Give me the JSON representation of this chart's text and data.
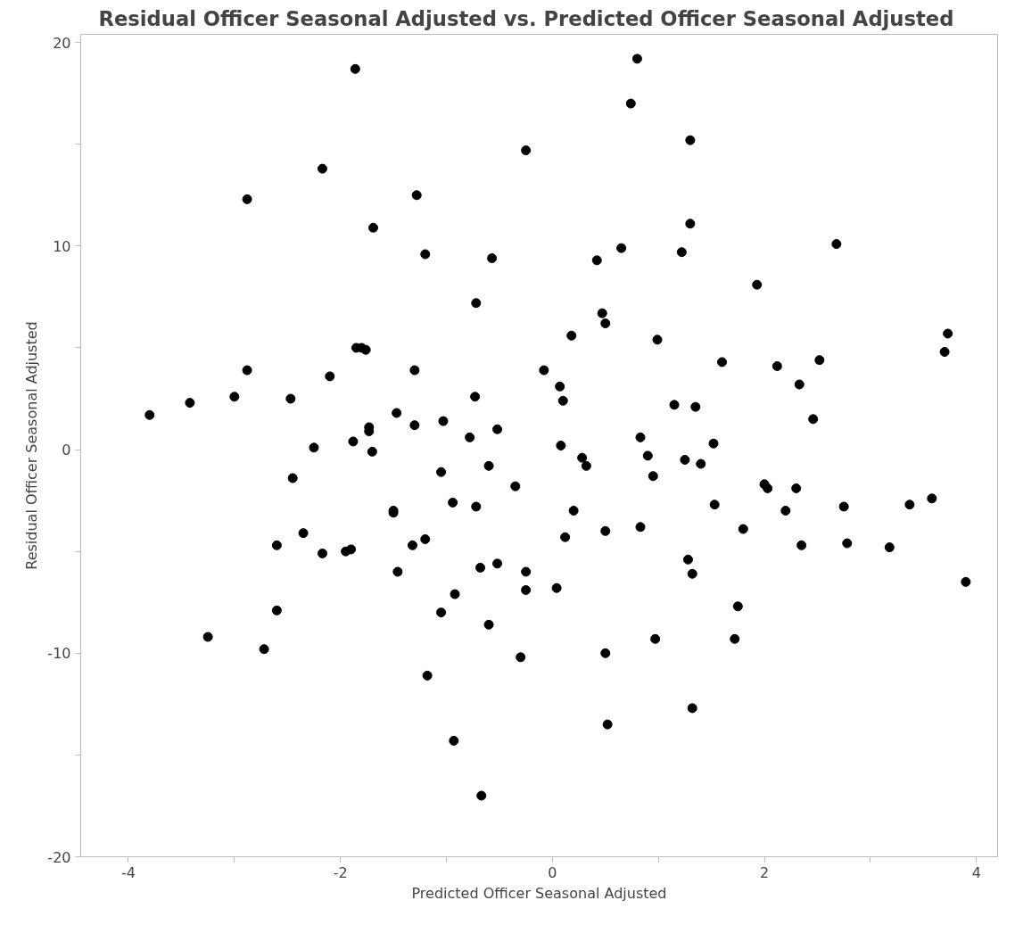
{
  "chart_data": {
    "type": "scatter",
    "title": "Residual Officer Seasonal Adjusted vs. Predicted Officer Seasonal Adjusted",
    "xlabel": "Predicted Officer Seasonal Adjusted",
    "ylabel": "Residual Officer Seasonal Adjusted",
    "xlim": [
      -4.45,
      4.2
    ],
    "ylim": [
      -20,
      20.4
    ],
    "xticks": [
      -4,
      {
        "value": -3,
        "label": null
      },
      -2,
      {
        "value": -1,
        "label": null
      },
      0,
      {
        "value": 1,
        "label": null
      },
      2,
      {
        "value": 3,
        "label": null
      },
      4
    ],
    "yticks": [
      -20,
      {
        "value": -15,
        "label": null
      },
      -10,
      {
        "value": -5,
        "label": null
      },
      0,
      {
        "value": 5,
        "label": null
      },
      10,
      {
        "value": 15,
        "label": null
      },
      20
    ],
    "grid": false,
    "marker": "circle",
    "series": [
      {
        "color": "#000000",
        "x": [
          -3.8,
          -3.42,
          -3.0,
          -2.88,
          -2.88,
          -2.47,
          -2.25,
          -2.45,
          -2.6,
          -2.6,
          -2.35,
          -2.17,
          -3.25,
          -2.72,
          -2.17,
          -2.1,
          -1.95,
          -1.88,
          -1.9,
          -1.86,
          -1.85,
          -1.8,
          -1.76,
          -1.73,
          -1.73,
          -1.7,
          -1.69,
          -1.47,
          -1.5,
          -1.5,
          -1.46,
          -1.3,
          -1.3,
          -1.32,
          -1.28,
          -1.2,
          -1.2,
          -1.18,
          -1.05,
          -1.03,
          -1.05,
          -0.94,
          -0.92,
          -0.93,
          -0.78,
          -0.73,
          -0.72,
          -0.72,
          -0.68,
          -0.67,
          -0.6,
          -0.6,
          -0.57,
          -0.52,
          -0.52,
          -0.35,
          -0.3,
          -0.25,
          -0.25,
          -0.25,
          -0.08,
          0.04,
          0.07,
          0.1,
          0.08,
          0.12,
          0.18,
          0.2,
          0.28,
          0.32,
          0.42,
          0.47,
          0.5,
          0.5,
          0.5,
          0.52,
          0.65,
          0.74,
          0.8,
          0.83,
          0.83,
          0.9,
          0.95,
          0.97,
          0.99,
          1.15,
          1.22,
          1.25,
          1.28,
          1.3,
          1.3,
          1.32,
          1.32,
          1.35,
          1.4,
          1.52,
          1.53,
          1.6,
          1.72,
          1.75,
          1.8,
          1.93,
          2.0,
          2.03,
          2.12,
          2.2,
          2.3,
          2.33,
          2.35,
          2.46,
          2.52,
          2.68,
          2.75,
          2.78,
          3.18,
          3.37,
          3.58,
          3.7,
          3.73,
          3.9
        ],
        "values": [
          1.7,
          2.3,
          2.6,
          12.3,
          3.9,
          2.5,
          0.1,
          -1.4,
          -4.7,
          -7.9,
          -4.1,
          -5.1,
          -9.2,
          -9.8,
          13.8,
          3.6,
          -5.0,
          0.4,
          -4.9,
          18.7,
          5.0,
          5.0,
          4.9,
          1.1,
          0.9,
          -0.1,
          10.9,
          1.8,
          -3.0,
          -3.1,
          -6.0,
          3.9,
          1.2,
          -4.7,
          12.5,
          -4.4,
          9.6,
          -11.1,
          -1.1,
          1.4,
          -8.0,
          -2.6,
          -7.1,
          -14.3,
          0.6,
          2.6,
          7.2,
          -2.8,
          -5.8,
          -17.0,
          -0.8,
          -8.6,
          9.4,
          1.0,
          -5.6,
          -1.8,
          -10.2,
          14.7,
          -6.0,
          -6.9,
          3.9,
          -6.8,
          3.1,
          2.4,
          0.2,
          -4.3,
          5.6,
          -3.0,
          -0.4,
          -0.8,
          9.3,
          6.7,
          6.2,
          -4.0,
          -10.0,
          -13.5,
          9.9,
          17.0,
          19.2,
          0.6,
          -3.8,
          -0.3,
          -1.3,
          -9.3,
          5.4,
          2.2,
          9.7,
          -0.5,
          -5.4,
          15.2,
          11.1,
          -12.7,
          -6.1,
          2.1,
          -0.7,
          0.3,
          -2.7,
          4.3,
          -9.3,
          -7.7,
          -3.9,
          8.1,
          -1.7,
          -1.9,
          4.1,
          -3.0,
          -1.9,
          3.2,
          -4.7,
          1.5,
          4.4,
          10.1,
          -2.8,
          -4.6,
          -4.8,
          -2.7,
          -2.4,
          4.8,
          5.7,
          -6.5
        ]
      }
    ]
  }
}
